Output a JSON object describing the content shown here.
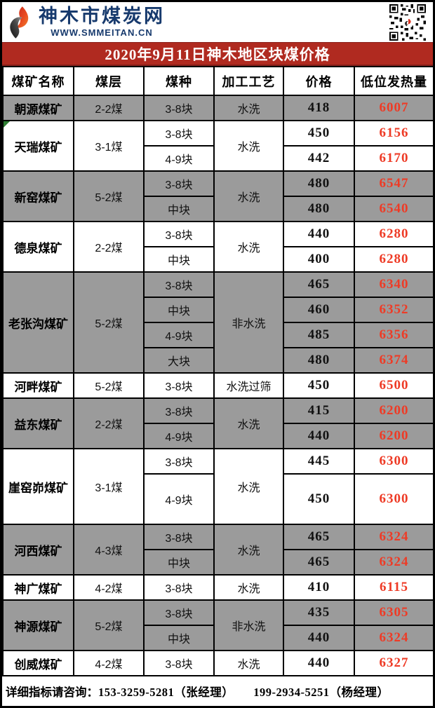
{
  "colors": {
    "accent_red": "#b02a20",
    "accent_red_dark": "#8a201a",
    "value_red": "#ee3b26",
    "row_gray": "#9b9b9b",
    "brand_navy": "#173a6d"
  },
  "header": {
    "brand": "神木市煤炭网",
    "website": "WWW.SMMEITAN.CN"
  },
  "title": "2020年9月11日神木地区块煤价格",
  "table": {
    "columns": [
      "煤矿名称",
      "煤层",
      "煤种",
      "加工工艺",
      "价格",
      "低位发热量"
    ],
    "groups": [
      {
        "mine": "朝源煤矿",
        "seam": "2-2煤",
        "process": "水洗",
        "shade": "gray",
        "rows": [
          {
            "type": "3-8块",
            "price": "418",
            "kcal": "6007"
          }
        ]
      },
      {
        "mine": "天瑞煤矿",
        "seam": "3-1煤",
        "process": "水洗",
        "shade": "white",
        "note_marker": true,
        "rows": [
          {
            "type": "3-8块",
            "price": "450",
            "kcal": "6156"
          },
          {
            "type": "4-9块",
            "price": "442",
            "kcal": "6170"
          }
        ]
      },
      {
        "mine": "新窑煤矿",
        "seam": "5-2煤",
        "process": "水洗",
        "shade": "gray",
        "rows": [
          {
            "type": "3-8块",
            "price": "480",
            "kcal": "6547"
          },
          {
            "type": "中块",
            "price": "480",
            "kcal": "6540"
          }
        ]
      },
      {
        "mine": "德泉煤矿",
        "seam": "2-2煤",
        "process": "水洗",
        "shade": "white",
        "rows": [
          {
            "type": "3-8块",
            "price": "440",
            "kcal": "6280"
          },
          {
            "type": "中块",
            "price": "400",
            "kcal": "6280"
          }
        ]
      },
      {
        "mine": "老张沟煤矿",
        "seam": "5-2煤",
        "process": "非水洗",
        "shade": "gray",
        "rows": [
          {
            "type": "3-8块",
            "price": "465",
            "kcal": "6340"
          },
          {
            "type": "中块",
            "price": "460",
            "kcal": "6352"
          },
          {
            "type": "4-9块",
            "price": "485",
            "kcal": "6356"
          },
          {
            "type": "大块",
            "price": "480",
            "kcal": "6374"
          }
        ]
      },
      {
        "mine": "河畔煤矿",
        "seam": "5-2煤",
        "process": "水洗过筛",
        "shade": "white",
        "rows": [
          {
            "type": "3-8块",
            "price": "450",
            "kcal": "6500"
          }
        ]
      },
      {
        "mine": "益东煤矿",
        "seam": "2-2煤",
        "process": "水洗",
        "shade": "gray",
        "rows": [
          {
            "type": "3-8块",
            "price": "415",
            "kcal": "6200"
          },
          {
            "type": "4-9块",
            "price": "440",
            "kcal": "6200"
          }
        ]
      },
      {
        "mine": "崖窑峁煤矿",
        "seam": "3-1煤",
        "process": "水洗",
        "shade": "white",
        "rows": [
          {
            "type": "3-8块",
            "price": "445",
            "kcal": "6300"
          },
          {
            "type": "4-9块",
            "price": "450",
            "kcal": "6300",
            "tall": true
          }
        ]
      },
      {
        "mine": "河西煤矿",
        "seam": "4-3煤",
        "process": "水洗",
        "shade": "gray",
        "rows": [
          {
            "type": "3-8块",
            "price": "465",
            "kcal": "6324"
          },
          {
            "type": "中块",
            "price": "465",
            "kcal": "6324"
          }
        ]
      },
      {
        "mine": "神广煤矿",
        "seam": "4-2煤",
        "process": "水洗",
        "shade": "white",
        "rows": [
          {
            "type": "3-8块",
            "price": "410",
            "kcal": "6115"
          }
        ]
      },
      {
        "mine": "神源煤矿",
        "seam": "5-2煤",
        "process": "非水洗",
        "shade": "gray",
        "rows": [
          {
            "type": "3-8块",
            "price": "435",
            "kcal": "6305"
          },
          {
            "type": "中块",
            "price": "440",
            "kcal": "6324"
          }
        ]
      },
      {
        "mine": "创威煤矿",
        "seam": "4-2煤",
        "process": "水洗",
        "shade": "white",
        "rows": [
          {
            "type": "3-8块",
            "price": "440",
            "kcal": "6327"
          }
        ]
      }
    ]
  },
  "footer": {
    "label": "详细指标请咨询：",
    "contacts": [
      "153-3259-5281（张经理）",
      "199-2934-5251（杨经理）"
    ]
  }
}
